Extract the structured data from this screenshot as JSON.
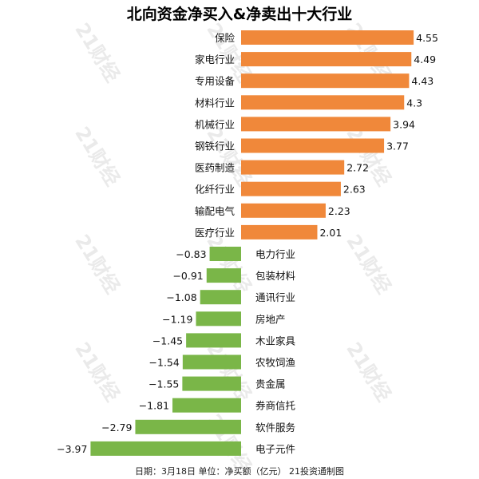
{
  "title": "北向资金净买入&净卖出十大行业",
  "footer": "日期：3月18日 单位：净买额（亿元） 21投资通制图",
  "watermark": "21财经",
  "colors": {
    "positive": "#f0883a",
    "negative": "#7ab648",
    "text": "#111111"
  },
  "chart_data": {
    "type": "bar",
    "orientation": "horizontal",
    "categories": [
      "保险",
      "家电行业",
      "专用设备",
      "材料行业",
      "机械行业",
      "钢铁行业",
      "医药制造",
      "化纤行业",
      "输配电气",
      "医疗行业",
      "电力行业",
      "包装材料",
      "通讯行业",
      "房地产",
      "木业家具",
      "农牧饲渔",
      "贵金属",
      "券商信托",
      "软件服务",
      "电子元件"
    ],
    "values": [
      4.55,
      4.49,
      4.43,
      4.3,
      3.94,
      3.77,
      2.72,
      2.63,
      2.23,
      2.01,
      -0.83,
      -0.91,
      -1.08,
      -1.19,
      -1.45,
      -1.54,
      -1.55,
      -1.81,
      -2.79,
      -3.97
    ],
    "value_labels": [
      "4.55",
      "4.49",
      "4.43",
      "4.3",
      "3.94",
      "3.77",
      "2.72",
      "2.63",
      "2.23",
      "2.01",
      "−0.83",
      "−0.91",
      "−1.08",
      "−1.19",
      "−1.45",
      "−1.54",
      "−1.55",
      "−1.81",
      "−2.79",
      "−3.97"
    ],
    "title": "北向资金净买入&净卖出十大行业",
    "xlabel": "",
    "ylabel": "",
    "grid": false,
    "legend": "none"
  }
}
